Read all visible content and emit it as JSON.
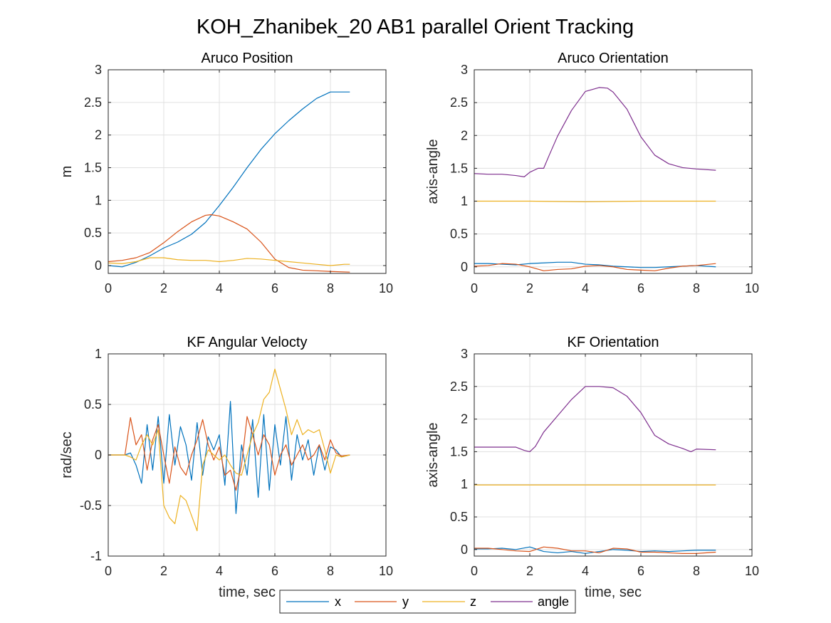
{
  "figure": {
    "title": "KOH_Zhanibek_20 AB1 parallel Orient Tracking"
  },
  "legend": {
    "entries": [
      {
        "name": "x",
        "color": "#0072BD"
      },
      {
        "name": "y",
        "color": "#D95319"
      },
      {
        "name": "z",
        "color": "#EDB120"
      },
      {
        "name": "angle",
        "color": "#7E2F8E"
      }
    ]
  },
  "chart_data": [
    {
      "type": "line",
      "title": "Aruco Position",
      "xlabel": "",
      "ylabel": "m",
      "xlim": [
        0,
        10
      ],
      "ylim": [
        -0.12,
        3
      ],
      "xticks": [
        0,
        2,
        4,
        6,
        8,
        10
      ],
      "yticks": [
        0,
        0.5,
        1,
        1.5,
        2,
        2.5,
        3
      ],
      "grid": true,
      "series": [
        {
          "name": "x",
          "color": "#0072BD",
          "x": [
            0,
            0.5,
            1,
            1.5,
            2,
            2.5,
            3,
            3.5,
            4,
            4.5,
            5,
            5.5,
            6,
            6.5,
            7,
            7.5,
            8,
            8.5,
            8.7
          ],
          "y": [
            0,
            -0.02,
            0.05,
            0.15,
            0.27,
            0.36,
            0.48,
            0.66,
            0.92,
            1.2,
            1.5,
            1.78,
            2.02,
            2.22,
            2.4,
            2.56,
            2.66,
            2.66,
            2.66
          ]
        },
        {
          "name": "y",
          "color": "#D95319",
          "x": [
            0,
            0.5,
            1,
            1.5,
            2,
            2.5,
            3,
            3.5,
            3.7,
            4,
            4.5,
            5,
            5.5,
            6,
            6.5,
            7,
            7.5,
            8,
            8.7
          ],
          "y": [
            0.06,
            0.08,
            0.12,
            0.2,
            0.35,
            0.52,
            0.67,
            0.77,
            0.78,
            0.76,
            0.67,
            0.56,
            0.36,
            0.1,
            -0.03,
            -0.07,
            -0.08,
            -0.09,
            -0.1
          ]
        },
        {
          "name": "z",
          "color": "#EDB120",
          "x": [
            0,
            0.5,
            1,
            1.5,
            2,
            2.5,
            3,
            3.5,
            4,
            4.5,
            5,
            5.5,
            6,
            6.5,
            7,
            7.5,
            8,
            8.5,
            8.7
          ],
          "y": [
            0.04,
            0.03,
            0.06,
            0.12,
            0.12,
            0.09,
            0.08,
            0.08,
            0.06,
            0.08,
            0.11,
            0.1,
            0.08,
            0.06,
            0.04,
            0.02,
            0,
            0.02,
            0.02
          ]
        }
      ]
    },
    {
      "type": "line",
      "title": "Aruco Orientation",
      "xlabel": "",
      "ylabel": "axis-angle",
      "xlim": [
        0,
        10
      ],
      "ylim": [
        -0.1,
        3
      ],
      "xticks": [
        0,
        2,
        4,
        6,
        8,
        10
      ],
      "yticks": [
        0,
        0.5,
        1,
        1.5,
        2,
        2.5,
        3
      ],
      "grid": true,
      "series": [
        {
          "name": "x",
          "color": "#0072BD",
          "x": [
            0,
            0.5,
            1,
            1.5,
            2,
            2.5,
            3,
            3.5,
            4,
            4.5,
            5,
            5.5,
            6,
            6.5,
            7,
            7.5,
            8,
            8.7
          ],
          "y": [
            0.05,
            0.05,
            0.04,
            0.03,
            0.05,
            0.06,
            0.07,
            0.07,
            0.04,
            0.03,
            0.01,
            0,
            -0.01,
            -0.01,
            0,
            0.01,
            0.02,
            0
          ]
        },
        {
          "name": "y",
          "color": "#D95319",
          "x": [
            0,
            0.5,
            1,
            1.5,
            2,
            2.5,
            3,
            3.5,
            4,
            4.5,
            5,
            5.5,
            6,
            6.5,
            7,
            7.5,
            8,
            8.7
          ],
          "y": [
            0.01,
            0.02,
            0.05,
            0.04,
            0,
            -0.06,
            -0.04,
            -0.03,
            0.01,
            0.02,
            0,
            -0.04,
            -0.05,
            -0.06,
            -0.02,
            0.01,
            0.02,
            0.05
          ]
        },
        {
          "name": "z",
          "color": "#EDB120",
          "x": [
            0,
            2,
            4,
            6,
            8,
            8.7
          ],
          "y": [
            1.0,
            1.0,
            0.99,
            1.0,
            1.0,
            1.0
          ]
        },
        {
          "name": "angle",
          "color": "#7E2F8E",
          "x": [
            0,
            0.5,
            1,
            1.5,
            1.8,
            2,
            2.3,
            2.5,
            2.7,
            3,
            3.5,
            4,
            4.5,
            4.8,
            5,
            5.5,
            6,
            6.5,
            7,
            7.5,
            8,
            8.7
          ],
          "y": [
            1.42,
            1.41,
            1.41,
            1.39,
            1.37,
            1.44,
            1.5,
            1.5,
            1.7,
            1.99,
            2.38,
            2.67,
            2.73,
            2.72,
            2.66,
            2.4,
            1.98,
            1.7,
            1.57,
            1.51,
            1.49,
            1.47
          ]
        }
      ]
    },
    {
      "type": "line",
      "title": "KF Angular Velocty",
      "xlabel": "time, sec",
      "ylabel": "rad/sec",
      "xlim": [
        0,
        10
      ],
      "ylim": [
        -1,
        1
      ],
      "xticks": [
        0,
        2,
        4,
        6,
        8,
        10
      ],
      "yticks": [
        -1,
        -0.5,
        0,
        0.5,
        1
      ],
      "grid": true,
      "series": [
        {
          "name": "x",
          "color": "#0072BD",
          "x": [
            0,
            0.6,
            0.8,
            1.0,
            1.2,
            1.4,
            1.6,
            1.8,
            2.0,
            2.2,
            2.4,
            2.6,
            2.8,
            3.0,
            3.2,
            3.4,
            3.6,
            3.8,
            4.0,
            4.2,
            4.4,
            4.6,
            4.8,
            5.0,
            5.2,
            5.4,
            5.6,
            5.8,
            6.0,
            6.2,
            6.4,
            6.6,
            6.8,
            7.0,
            7.2,
            7.4,
            7.6,
            7.8,
            8.0,
            8.2,
            8.4,
            8.7
          ],
          "y": [
            0,
            0,
            0.02,
            -0.1,
            -0.28,
            0.3,
            -0.15,
            0.38,
            -0.28,
            0.4,
            -0.1,
            0.28,
            0.1,
            -0.25,
            0.32,
            -0.2,
            0.18,
            0.05,
            0.2,
            -0.3,
            0.53,
            -0.58,
            0.1,
            -0.2,
            0.35,
            -0.42,
            0.4,
            -0.35,
            0.3,
            -0.1,
            0.38,
            -0.25,
            0.2,
            -0.05,
            0.15,
            -0.2,
            0.1,
            -0.15,
            0.08,
            0.05,
            -0.02,
            0
          ]
        },
        {
          "name": "y",
          "color": "#D95319",
          "x": [
            0,
            0.6,
            0.8,
            1.0,
            1.2,
            1.4,
            1.6,
            1.8,
            2.0,
            2.2,
            2.4,
            2.6,
            2.8,
            3.0,
            3.2,
            3.4,
            3.6,
            3.8,
            4.0,
            4.2,
            4.4,
            4.6,
            4.8,
            5.0,
            5.2,
            5.4,
            5.6,
            5.8,
            6.0,
            6.2,
            6.4,
            6.6,
            6.8,
            7.0,
            7.2,
            7.4,
            7.6,
            7.8,
            8.0,
            8.2,
            8.4,
            8.7
          ],
          "y": [
            0,
            0,
            0.37,
            0.1,
            0.2,
            -0.15,
            0.15,
            0.3,
            0.0,
            -0.28,
            0.08,
            -0.12,
            -0.2,
            0.0,
            0.15,
            0.35,
            0.1,
            -0.05,
            0.08,
            -0.2,
            -0.15,
            -0.35,
            -0.1,
            0.38,
            0.2,
            0.0,
            0.2,
            0.1,
            -0.2,
            0.0,
            0.1,
            -0.1,
            0.0,
            0.1,
            -0.05,
            0.0,
            0.1,
            -0.05,
            0.15,
            0.02,
            -0.01,
            0
          ]
        },
        {
          "name": "z",
          "color": "#EDB120",
          "x": [
            0,
            0.6,
            0.8,
            1.0,
            1.2,
            1.4,
            1.6,
            1.8,
            2.0,
            2.2,
            2.4,
            2.6,
            2.8,
            3.0,
            3.2,
            3.4,
            3.6,
            3.8,
            4.0,
            4.2,
            4.4,
            4.6,
            4.8,
            5.0,
            5.2,
            5.4,
            5.6,
            5.8,
            6.0,
            6.2,
            6.4,
            6.6,
            6.8,
            7.0,
            7.2,
            7.4,
            7.6,
            7.8,
            8.0,
            8.2,
            8.4,
            8.7
          ],
          "y": [
            0,
            0,
            -0.02,
            -0.05,
            0.1,
            0.2,
            0.1,
            0.25,
            -0.5,
            -0.62,
            -0.68,
            -0.4,
            -0.45,
            -0.6,
            -0.75,
            -0.1,
            0.05,
            0.0,
            -0.05,
            0.0,
            -0.1,
            -0.18,
            -0.2,
            0.0,
            0.2,
            0.32,
            0.55,
            0.62,
            0.85,
            0.65,
            0.45,
            0.2,
            0.35,
            0.2,
            0.25,
            0.22,
            0.25,
            0.05,
            -0.18,
            0.0,
            -0.02,
            0
          ]
        }
      ]
    },
    {
      "type": "line",
      "title": "KF Orientation",
      "xlabel": "time, sec",
      "ylabel": "axis-angle",
      "xlim": [
        0,
        10
      ],
      "ylim": [
        -0.1,
        3
      ],
      "xticks": [
        0,
        2,
        4,
        6,
        8,
        10
      ],
      "yticks": [
        0,
        0.5,
        1,
        1.5,
        2,
        2.5,
        3
      ],
      "grid": true,
      "series": [
        {
          "name": "x",
          "color": "#0072BD",
          "x": [
            0,
            0.5,
            1,
            1.5,
            2,
            2.5,
            3,
            3.5,
            4,
            4.5,
            5,
            5.5,
            6,
            6.5,
            7,
            7.5,
            8,
            8.7
          ],
          "y": [
            0.01,
            0.01,
            0.02,
            0.0,
            0.04,
            -0.03,
            -0.05,
            -0.03,
            -0.06,
            -0.03,
            0.0,
            -0.01,
            -0.03,
            -0.02,
            -0.03,
            -0.02,
            -0.01,
            -0.01
          ]
        },
        {
          "name": "y",
          "color": "#D95319",
          "x": [
            0,
            0.5,
            1,
            1.5,
            2,
            2.5,
            3,
            3.5,
            4,
            4.5,
            5,
            5.5,
            6,
            6.5,
            7,
            7.5,
            8,
            8.7
          ],
          "y": [
            0.02,
            0.02,
            0.0,
            -0.02,
            -0.03,
            0.04,
            0.02,
            -0.02,
            -0.02,
            -0.05,
            0.02,
            0.01,
            -0.04,
            -0.04,
            -0.05,
            -0.06,
            -0.06,
            -0.04
          ]
        },
        {
          "name": "z",
          "color": "#EDB120",
          "x": [
            0,
            2,
            4,
            6,
            8,
            8.7
          ],
          "y": [
            0.99,
            0.99,
            0.99,
            0.99,
            0.99,
            0.99
          ]
        },
        {
          "name": "angle",
          "color": "#7E2F8E",
          "x": [
            0,
            0.5,
            1,
            1.5,
            1.8,
            2,
            2.2,
            2.5,
            3,
            3.5,
            4,
            4.5,
            5,
            5.5,
            6,
            6.5,
            7,
            7.5,
            7.8,
            8,
            8.7
          ],
          "y": [
            1.57,
            1.57,
            1.57,
            1.57,
            1.52,
            1.5,
            1.58,
            1.8,
            2.05,
            2.3,
            2.5,
            2.5,
            2.48,
            2.35,
            2.1,
            1.75,
            1.62,
            1.55,
            1.5,
            1.54,
            1.53
          ]
        }
      ]
    }
  ]
}
